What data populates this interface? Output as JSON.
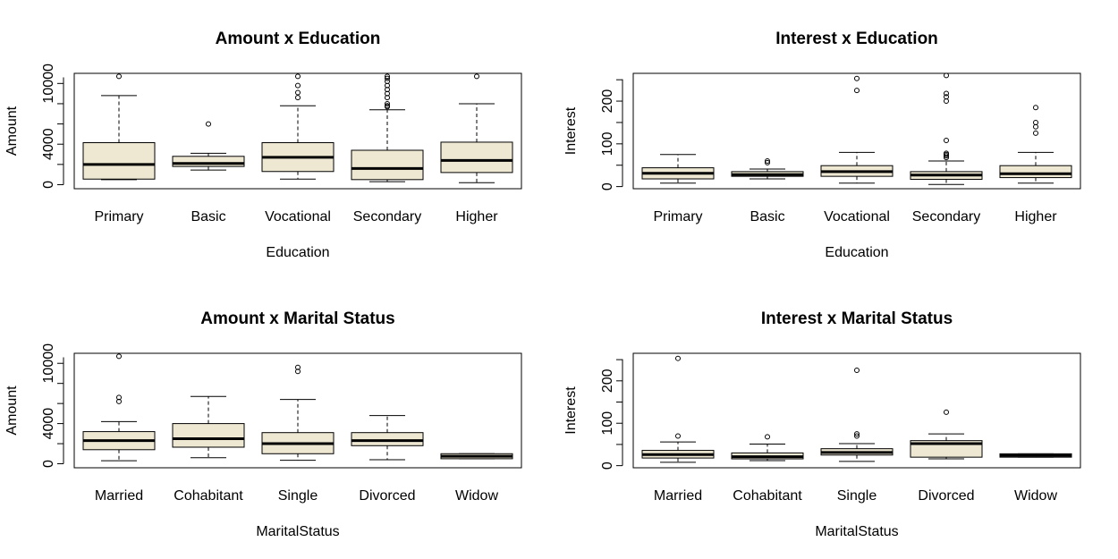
{
  "colors": {
    "box_fill": "#EEE8D2",
    "line": "#000000",
    "background": "#FFFFFF"
  },
  "chart_data": [
    {
      "type": "boxplot",
      "title": "Amount x Education",
      "xlabel": "Education",
      "ylabel": "Amount",
      "ylim": [
        -400,
        11000
      ],
      "yticks": [
        0,
        4000,
        10000
      ],
      "categories": [
        "Primary",
        "Basic",
        "Vocational",
        "Secondary",
        "Higher"
      ],
      "boxes": [
        {
          "low": 500,
          "q1": 550,
          "median": 2000,
          "q3": 4150,
          "high": 8800,
          "outliers": [
            10700
          ]
        },
        {
          "low": 1450,
          "q1": 1800,
          "median": 2100,
          "q3": 2800,
          "high": 3100,
          "outliers": [
            6000
          ]
        },
        {
          "low": 550,
          "q1": 1300,
          "median": 2700,
          "q3": 4150,
          "high": 7800,
          "outliers": [
            8600,
            9100,
            9800,
            10700
          ]
        },
        {
          "low": 300,
          "q1": 500,
          "median": 1600,
          "q3": 3400,
          "high": 7400,
          "outliers": [
            7700,
            7800,
            8000,
            8600,
            9000,
            9400,
            9800,
            10200,
            10500,
            10700
          ]
        },
        {
          "low": 200,
          "q1": 1200,
          "median": 2400,
          "q3": 4200,
          "high": 8000,
          "outliers": [
            10700
          ]
        }
      ]
    },
    {
      "type": "boxplot",
      "title": "Interest x Education",
      "xlabel": "Education",
      "ylabel": "Interest",
      "ylim": [
        -5,
        265
      ],
      "yticks": [
        0,
        100,
        200
      ],
      "categories": [
        "Primary",
        "Basic",
        "Vocational",
        "Secondary",
        "Higher"
      ],
      "boxes": [
        {
          "low": 8,
          "q1": 18,
          "median": 31,
          "q3": 44,
          "high": 75,
          "outliers": []
        },
        {
          "low": 18,
          "q1": 24,
          "median": 28,
          "q3": 35,
          "high": 41,
          "outliers": [
            56,
            60
          ]
        },
        {
          "low": 8,
          "q1": 24,
          "median": 35,
          "q3": 49,
          "high": 80,
          "outliers": [
            225,
            253
          ]
        },
        {
          "low": 5,
          "q1": 17,
          "median": 27,
          "q3": 35,
          "high": 60,
          "outliers": [
            68,
            72,
            75,
            78,
            108,
            200,
            210,
            218,
            260
          ]
        },
        {
          "low": 8,
          "q1": 21,
          "median": 30,
          "q3": 49,
          "high": 80,
          "outliers": [
            125,
            140,
            150,
            185
          ]
        }
      ]
    },
    {
      "type": "boxplot",
      "title": "Amount x Marital Status",
      "xlabel": "MaritalStatus",
      "ylabel": "Amount",
      "ylim": [
        -400,
        11000
      ],
      "yticks": [
        0,
        4000,
        10000
      ],
      "categories": [
        "Married",
        "Cohabitant",
        "Single",
        "Divorced",
        "Widow"
      ],
      "boxes": [
        {
          "low": 300,
          "q1": 1400,
          "median": 2300,
          "q3": 3200,
          "high": 4200,
          "outliers": [
            6200,
            6600,
            10700
          ]
        },
        {
          "low": 600,
          "q1": 1650,
          "median": 2500,
          "q3": 4000,
          "high": 6700,
          "outliers": []
        },
        {
          "low": 350,
          "q1": 1000,
          "median": 2000,
          "q3": 3100,
          "high": 6400,
          "outliers": [
            9200,
            9600
          ]
        },
        {
          "low": 400,
          "q1": 1800,
          "median": 2300,
          "q3": 3100,
          "high": 4800,
          "outliers": []
        },
        {
          "low": 500,
          "q1": 500,
          "median": 750,
          "q3": 1000,
          "high": 1000,
          "outliers": []
        }
      ]
    },
    {
      "type": "boxplot",
      "title": "Interest x Marital Status",
      "xlabel": "MaritalStatus",
      "ylabel": "Interest",
      "ylim": [
        -5,
        265
      ],
      "yticks": [
        0,
        100,
        200
      ],
      "categories": [
        "Married",
        "Cohabitant",
        "Single",
        "Divorced",
        "Widow"
      ],
      "boxes": [
        {
          "low": 8,
          "q1": 18,
          "median": 26,
          "q3": 36,
          "high": 56,
          "outliers": [
            70,
            253
          ]
        },
        {
          "low": 12,
          "q1": 16,
          "median": 21,
          "q3": 30,
          "high": 51,
          "outliers": [
            68
          ]
        },
        {
          "low": 10,
          "q1": 25,
          "median": 31,
          "q3": 40,
          "high": 52,
          "outliers": [
            70,
            75,
            225
          ]
        },
        {
          "low": 16,
          "q1": 20,
          "median": 52,
          "q3": 59,
          "high": 75,
          "outliers": [
            126
          ]
        },
        {
          "low": 20,
          "q1": 20,
          "median": 24,
          "q3": 28,
          "high": 28,
          "outliers": []
        }
      ]
    }
  ]
}
